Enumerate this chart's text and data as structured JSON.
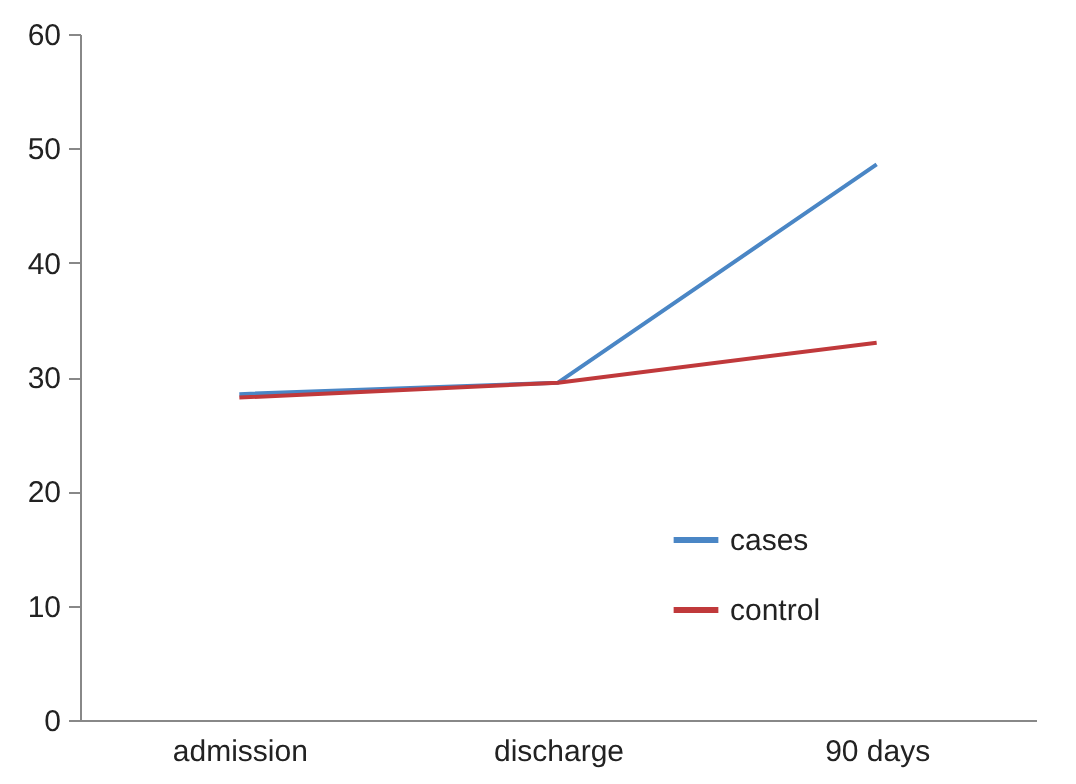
{
  "chart_data": {
    "type": "line",
    "categories": [
      "admission",
      "discharge",
      "90 days"
    ],
    "series": [
      {
        "name": "cases",
        "color": "#4a86c5",
        "values": [
          28.5,
          29.5,
          48.6
        ]
      },
      {
        "name": "control",
        "color": "#c0393b",
        "values": [
          28.2,
          29.5,
          33.0
        ]
      }
    ],
    "ylim": [
      0,
      60
    ],
    "yticks": [
      0,
      10,
      20,
      30,
      40,
      50,
      60
    ],
    "grid": false,
    "legend": "bottom right",
    "marker": "none",
    "line_style": "solid"
  }
}
